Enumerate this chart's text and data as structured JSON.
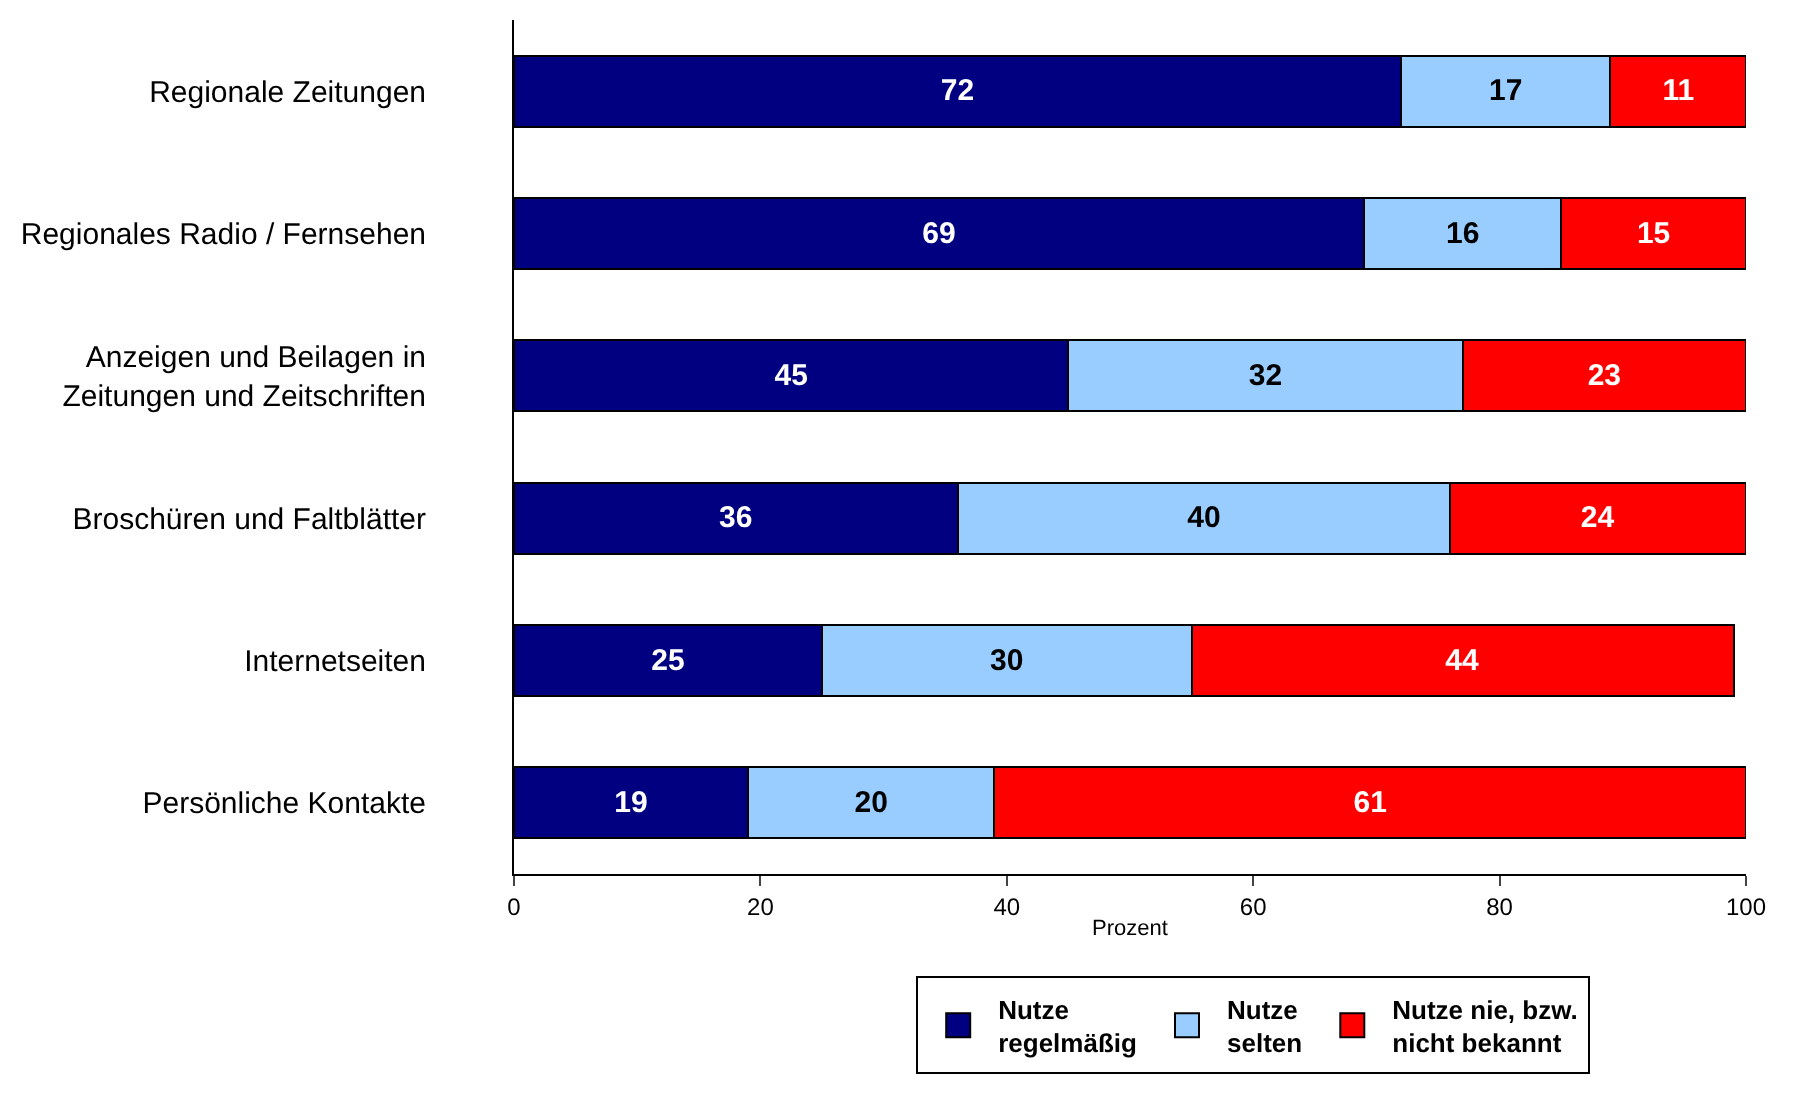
{
  "chart_data": {
    "type": "bar",
    "orientation": "horizontal",
    "stacked": true,
    "data_labels": true,
    "legend": "bottom",
    "xlabel": "Prozent",
    "xlim": [
      0,
      100
    ],
    "xticks": [
      0,
      20,
      40,
      60,
      80,
      100
    ],
    "categories": [
      "Regionale Zeitungen",
      "Regionales Radio / Fernsehen",
      "Anzeigen und Beilagen in\nZeitungen und Zeitschriften",
      "Broschüren und Faltblätter",
      "Internetseiten",
      "Persönliche Kontakte"
    ],
    "series": [
      {
        "name": "Nutze\nregelmäßig",
        "color": "#000080",
        "values": [
          72,
          69,
          45,
          36,
          25,
          19
        ]
      },
      {
        "name": "Nutze\nselten",
        "color": "#99ccff",
        "values": [
          17,
          16,
          32,
          40,
          30,
          20
        ]
      },
      {
        "name": "Nutze nie, bzw.\nnicht bekannt",
        "color": "#ff0000",
        "values": [
          11,
          15,
          23,
          24,
          44,
          61
        ]
      }
    ]
  }
}
